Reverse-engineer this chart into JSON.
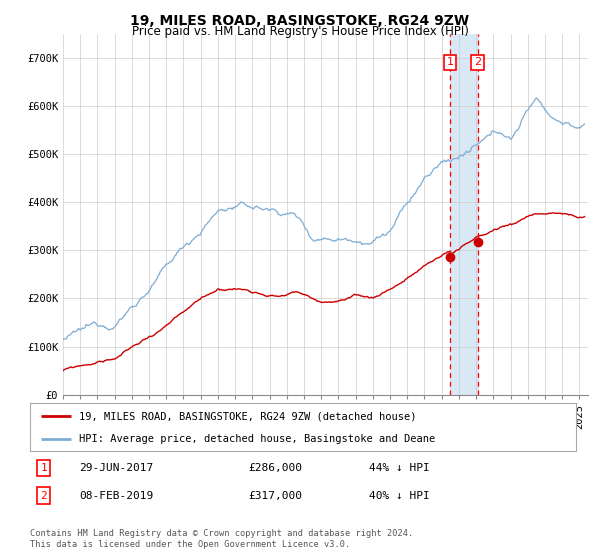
{
  "title": "19, MILES ROAD, BASINGSTOKE, RG24 9ZW",
  "subtitle": "Price paid vs. HM Land Registry's House Price Index (HPI)",
  "xlim_start": 1995.0,
  "xlim_end": 2025.5,
  "ylim": [
    0,
    750000
  ],
  "yticks": [
    0,
    100000,
    200000,
    300000,
    400000,
    500000,
    600000,
    700000
  ],
  "ytick_labels": [
    "£0",
    "£100K",
    "£200K",
    "£300K",
    "£400K",
    "£500K",
    "£600K",
    "£700K"
  ],
  "transaction1": {
    "date_num": 2017.49,
    "price": 286000,
    "label": "1",
    "date_str": "29-JUN-2017",
    "price_str": "£286,000",
    "pct_str": "44% ↓ HPI"
  },
  "transaction2": {
    "date_num": 2019.1,
    "price": 317000,
    "label": "2",
    "date_str": "08-FEB-2019",
    "price_str": "£317,000",
    "pct_str": "40% ↓ HPI"
  },
  "legend_label1": "19, MILES ROAD, BASINGSTOKE, RG24 9ZW (detached house)",
  "legend_label2": "HPI: Average price, detached house, Basingstoke and Deane",
  "footer": "Contains HM Land Registry data © Crown copyright and database right 2024.\nThis data is licensed under the Open Government Licence v3.0.",
  "line_color_red": "#cc0000",
  "line_color_blue": "#7eadd4",
  "shade_color": "#d8e8f5",
  "marker_color_red": "#cc0000",
  "bg_color": "#ffffff",
  "grid_color": "#cccccc",
  "title_fontsize": 10,
  "subtitle_fontsize": 8.5,
  "tick_fontsize": 7.5,
  "xticks": [
    1995,
    1996,
    1997,
    1998,
    1999,
    2000,
    2001,
    2002,
    2003,
    2004,
    2005,
    2006,
    2007,
    2008,
    2009,
    2010,
    2011,
    2012,
    2013,
    2014,
    2015,
    2016,
    2017,
    2018,
    2019,
    2020,
    2021,
    2022,
    2023,
    2024,
    2025
  ]
}
